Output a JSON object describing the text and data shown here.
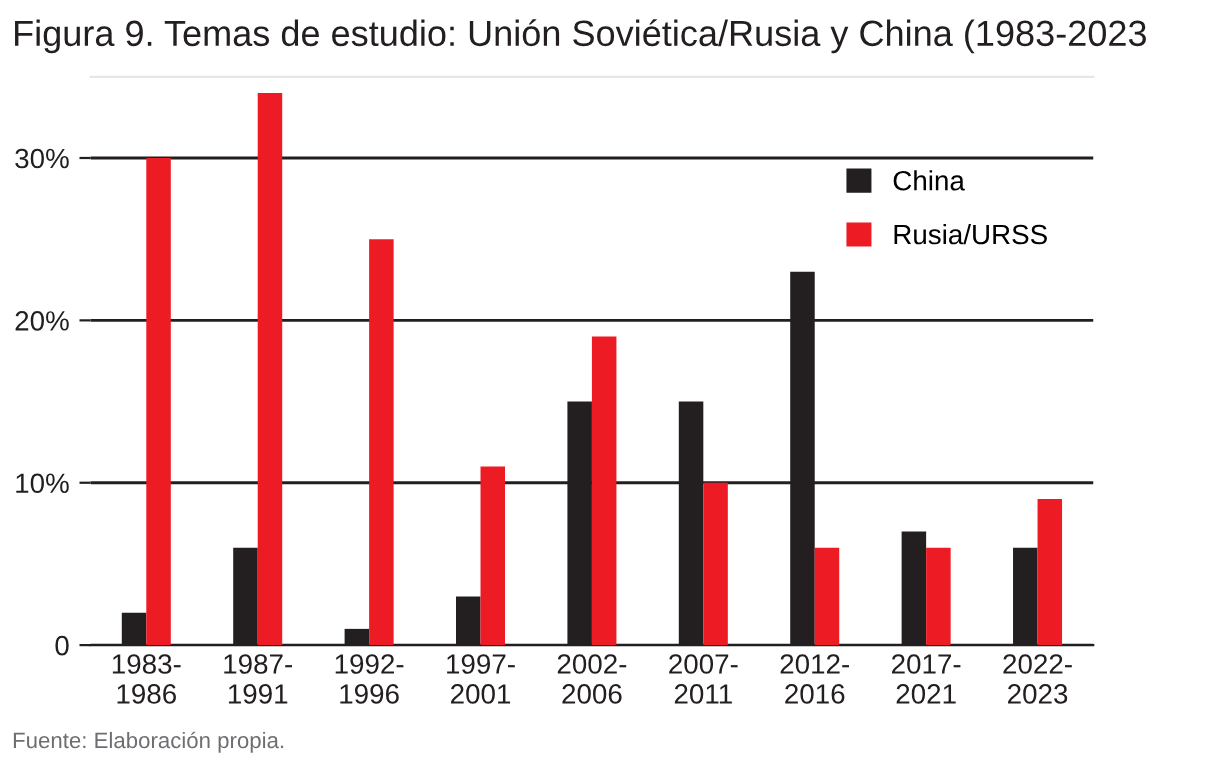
{
  "chart_data": {
    "type": "bar",
    "title": "Figura 9. Temas de estudio: Unión Soviética/Rusia y China (1983-2023",
    "categories": [
      "1983-\n1986",
      "1987-\n1991",
      "1992-\n1996",
      "1997-\n2001",
      "2002-\n2006",
      "2007-\n2011",
      "2012-\n2016",
      "2017-\n2021",
      "2022-\n2023"
    ],
    "series": [
      {
        "name": "China",
        "color": "#231f20",
        "values": [
          2,
          6,
          1,
          3,
          15,
          15,
          23,
          7,
          6
        ]
      },
      {
        "name": "Rusia/URSS",
        "color": "#ed1c24",
        "values": [
          30,
          34,
          25,
          11,
          19,
          10,
          6,
          6,
          9
        ]
      }
    ],
    "ylim": [
      0,
      35
    ],
    "yticks": [
      0,
      {
        "value": 10,
        "label": "10%"
      },
      {
        "value": 20,
        "label": "20%"
      },
      {
        "value": 30,
        "label": "30%"
      }
    ],
    "grid": "y",
    "legend": "top right",
    "annotations": [
      "Fuente: Elaboración propia."
    ]
  }
}
